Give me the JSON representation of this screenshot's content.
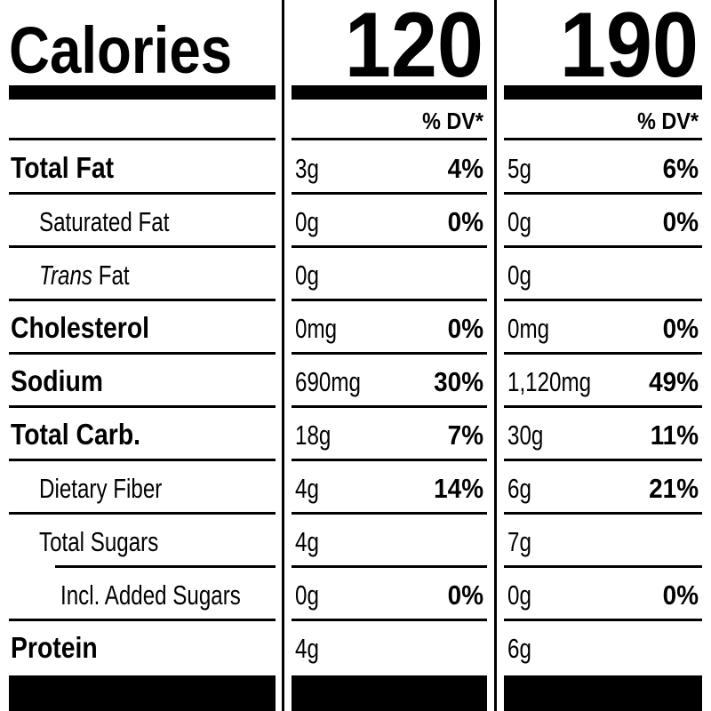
{
  "header": {
    "label": "Calories",
    "columns": [
      "120",
      "190"
    ]
  },
  "dv_header": [
    "% DV*",
    "% DV*"
  ],
  "rows": [
    {
      "name": "Total Fat",
      "cols": [
        {
          "amount": "3g",
          "dv": "4%"
        },
        {
          "amount": "5g",
          "dv": "6%"
        }
      ]
    },
    {
      "name": "Saturated Fat",
      "cols": [
        {
          "amount": "0g",
          "dv": "0%"
        },
        {
          "amount": "0g",
          "dv": "0%"
        }
      ]
    },
    {
      "name_italic": "Trans",
      "name": "Fat",
      "cols": [
        {
          "amount": "0g"
        },
        {
          "amount": "0g"
        }
      ]
    },
    {
      "name": "Cholesterol",
      "cols": [
        {
          "amount": "0mg",
          "dv": "0%"
        },
        {
          "amount": "0mg",
          "dv": "0%"
        }
      ]
    },
    {
      "name": "Sodium",
      "cols": [
        {
          "amount": "690mg",
          "dv": "30%"
        },
        {
          "amount": "1,120mg",
          "dv": "49%"
        }
      ]
    },
    {
      "name": "Total Carb.",
      "cols": [
        {
          "amount": "18g",
          "dv": "7%"
        },
        {
          "amount": "30g",
          "dv": "11%"
        }
      ]
    },
    {
      "name": "Dietary Fiber",
      "cols": [
        {
          "amount": "4g",
          "dv": "14%"
        },
        {
          "amount": "6g",
          "dv": "21%"
        }
      ]
    },
    {
      "name": "Total Sugars",
      "cols": [
        {
          "amount": "4g"
        },
        {
          "amount": "7g"
        }
      ]
    },
    {
      "name": "Incl. Added Sugars",
      "cols": [
        {
          "amount": "0g",
          "dv": "0%"
        },
        {
          "amount": "0g",
          "dv": "0%"
        }
      ]
    },
    {
      "name": "Protein",
      "cols": [
        {
          "amount": "4g"
        },
        {
          "amount": "6g"
        }
      ]
    }
  ]
}
